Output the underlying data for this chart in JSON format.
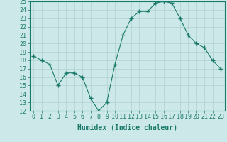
{
  "x": [
    0,
    1,
    2,
    3,
    4,
    5,
    6,
    7,
    8,
    9,
    10,
    11,
    12,
    13,
    14,
    15,
    16,
    17,
    18,
    19,
    20,
    21,
    22,
    23
  ],
  "y": [
    18.5,
    18.0,
    17.5,
    15.0,
    16.5,
    16.5,
    16.0,
    13.5,
    12.0,
    13.0,
    17.5,
    21.0,
    23.0,
    23.8,
    23.8,
    24.8,
    25.0,
    24.8,
    23.0,
    21.0,
    20.0,
    19.5,
    18.0,
    17.0
  ],
  "xlabel": "Humidex (Indice chaleur)",
  "ylim": [
    12,
    25
  ],
  "xlim": [
    -0.5,
    23.5
  ],
  "yticks": [
    12,
    13,
    14,
    15,
    16,
    17,
    18,
    19,
    20,
    21,
    22,
    23,
    24,
    25
  ],
  "xticks": [
    0,
    1,
    2,
    3,
    4,
    5,
    6,
    7,
    8,
    9,
    10,
    11,
    12,
    13,
    14,
    15,
    16,
    17,
    18,
    19,
    20,
    21,
    22,
    23
  ],
  "line_color": "#1a7a6a",
  "marker": "+",
  "marker_size": 4,
  "bg_color": "#cce8e8",
  "grid_color": "#b0d0d0",
  "label_fontsize": 7,
  "tick_fontsize": 6
}
